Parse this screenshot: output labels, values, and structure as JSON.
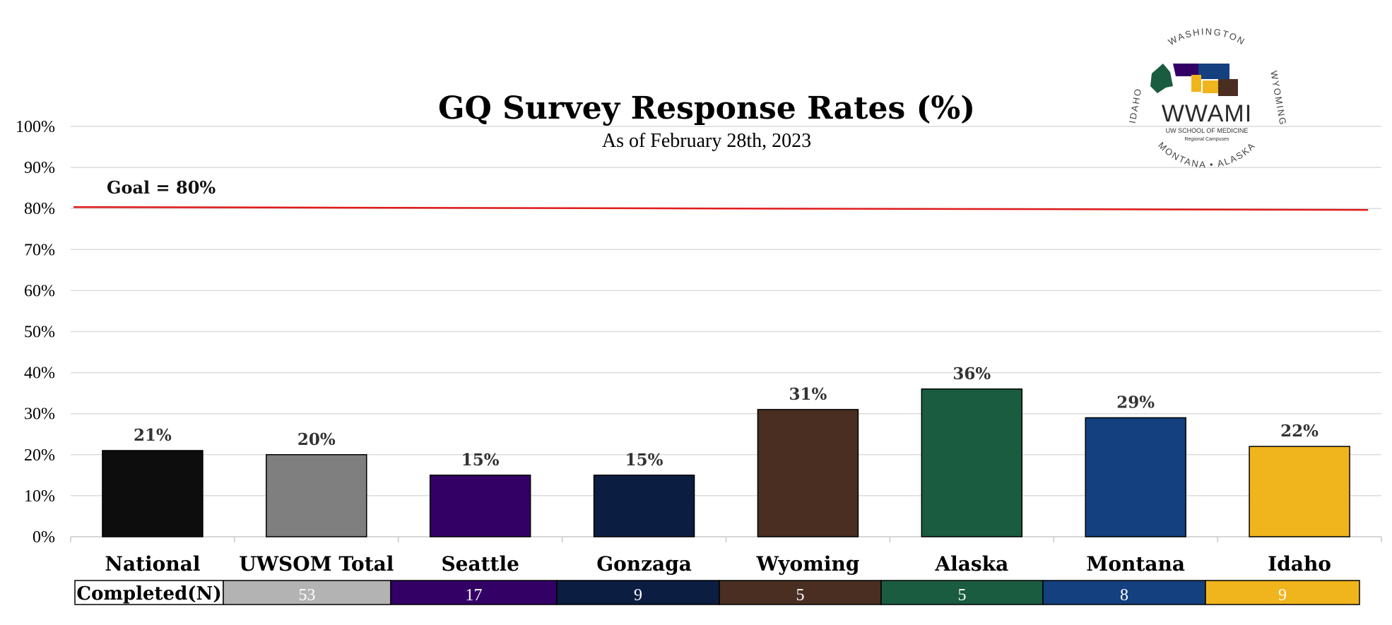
{
  "chart_data": {
    "type": "bar",
    "title": "GQ Survey Response Rates (%)",
    "subtitle": "As of February 28th, 2023",
    "categories": [
      "National",
      "UWSOM Total",
      "Seattle",
      "Gonzaga",
      "Wyoming",
      "Alaska",
      "Montana",
      "Idaho"
    ],
    "values": [
      21,
      20,
      15,
      15,
      31,
      36,
      29,
      22
    ],
    "data_labels": [
      "21%",
      "20%",
      "15%",
      "15%",
      "31%",
      "36%",
      "29%",
      "22%"
    ],
    "colors": [
      "#0d0d0d",
      "#7f7f7f",
      "#330066",
      "#0b1d41",
      "#4a2e22",
      "#1a5c40",
      "#14407f",
      "#f0b41c"
    ],
    "ylim": [
      0,
      100
    ],
    "yticks": [
      0,
      10,
      20,
      30,
      40,
      50,
      60,
      70,
      80,
      90,
      100
    ],
    "ytick_labels": [
      "0%",
      "10%",
      "20%",
      "30%",
      "40%",
      "50%",
      "60%",
      "70%",
      "80%",
      "90%",
      "100%"
    ],
    "grid": true,
    "goal": {
      "value": 80,
      "label": "Goal = 80%",
      "color": "#e01b1b"
    },
    "completed_table": {
      "header": "Completed(N)",
      "values": [
        "53",
        "17",
        "9",
        "5",
        "5",
        "8",
        "9"
      ],
      "colors": [
        "#b3b3b3",
        "#330066",
        "#0b1d41",
        "#4a2e22",
        "#1a5c40",
        "#14407f",
        "#f0b41c"
      ]
    }
  },
  "logo": {
    "ring_text_top": "WASHINGTON",
    "ring_text_right": "WYOMING",
    "ring_text_bottom": "MONTANA • ALASKA",
    "ring_text_left": "IDAHO",
    "wordmark": "WWAMI",
    "subtext1": "UW SCHOOL OF MEDICINE",
    "subtext2": "Regional Campuses"
  }
}
